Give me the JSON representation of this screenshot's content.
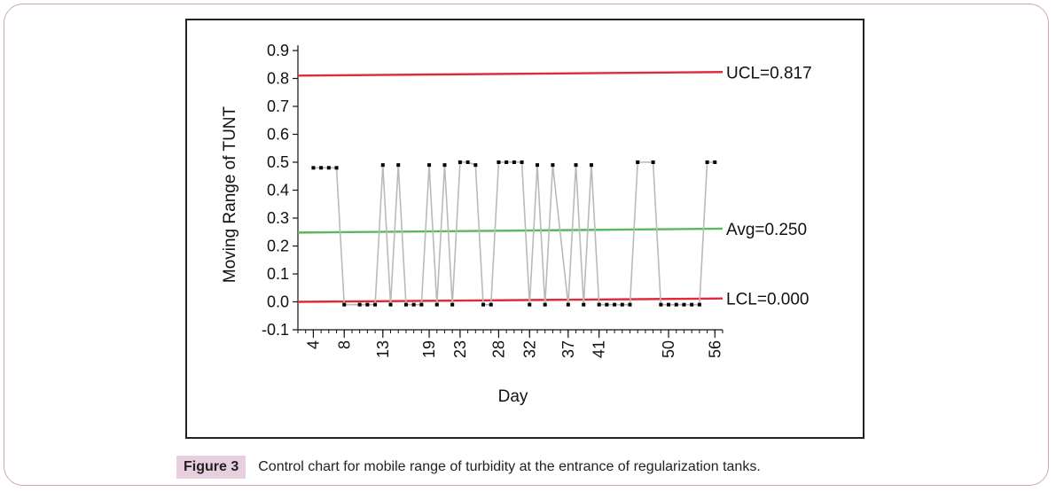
{
  "caption": {
    "label": "Figure 3",
    "text": "Control chart for mobile range of turbidity at the entrance of regularization tanks."
  },
  "colors": {
    "control_limit": "#e02a3a",
    "average": "#5cb85c",
    "series_line": "#b9b9b9",
    "point": "#000000",
    "frame": "#c9a6b8",
    "caption_label_bg": "#e7cfe0"
  },
  "chart_data": {
    "type": "line",
    "title": "",
    "xlabel": "Day",
    "ylabel": "Moving Range of TUNT",
    "ylim": [
      -0.1,
      0.9
    ],
    "xlim": [
      2,
      57
    ],
    "y_ticks": [
      "-0.1",
      "0.0",
      "0.1",
      "0.2",
      "0.3",
      "0.4",
      "0.5",
      "0.6",
      "0.7",
      "0.8",
      "0.9"
    ],
    "y_tick_values": [
      -0.1,
      0.0,
      0.1,
      0.2,
      0.3,
      0.4,
      0.5,
      0.6,
      0.7,
      0.8,
      0.9
    ],
    "x_tick_labels": [
      "4",
      "8",
      "13",
      "19",
      "23",
      "28",
      "32",
      "37",
      "41",
      "50",
      "56"
    ],
    "x_tick_values": [
      4,
      8,
      13,
      19,
      23,
      28,
      32,
      37,
      41,
      50,
      56
    ],
    "x_minor_range": [
      2,
      57
    ],
    "control_limits": [
      {
        "name": "UCL",
        "label": "UCL=0.817",
        "y": [
          0.81,
          0.823
        ]
      },
      {
        "name": "Avg",
        "label": "Avg=0.250",
        "y": [
          0.248,
          0.262
        ]
      },
      {
        "name": "LCL",
        "label": "LCL=0.000",
        "y": [
          0.0,
          0.012
        ]
      }
    ],
    "series": [
      {
        "name": "Moving Range",
        "x": [
          4,
          5,
          6,
          7,
          8,
          10,
          11,
          12,
          13,
          14,
          15,
          16,
          17,
          18,
          19,
          20,
          21,
          22,
          23,
          24,
          25,
          26,
          27,
          28,
          29,
          30,
          31,
          32,
          33,
          34,
          35,
          37,
          38,
          39,
          40,
          41,
          42,
          43,
          44,
          45,
          46,
          48,
          49,
          50,
          51,
          52,
          53,
          54,
          55,
          56
        ],
        "values": [
          0.48,
          0.48,
          0.48,
          0.48,
          -0.01,
          -0.01,
          -0.01,
          -0.01,
          0.49,
          -0.01,
          0.49,
          -0.01,
          -0.01,
          -0.01,
          0.49,
          -0.01,
          0.49,
          -0.01,
          0.5,
          0.5,
          0.49,
          -0.01,
          -0.01,
          0.5,
          0.5,
          0.5,
          0.5,
          -0.01,
          0.49,
          -0.01,
          0.49,
          -0.01,
          0.49,
          -0.01,
          0.49,
          -0.01,
          -0.01,
          -0.01,
          -0.01,
          -0.01,
          0.5,
          0.5,
          -0.01,
          -0.01,
          -0.01,
          -0.01,
          -0.01,
          -0.01,
          0.5,
          0.5
        ]
      }
    ]
  }
}
